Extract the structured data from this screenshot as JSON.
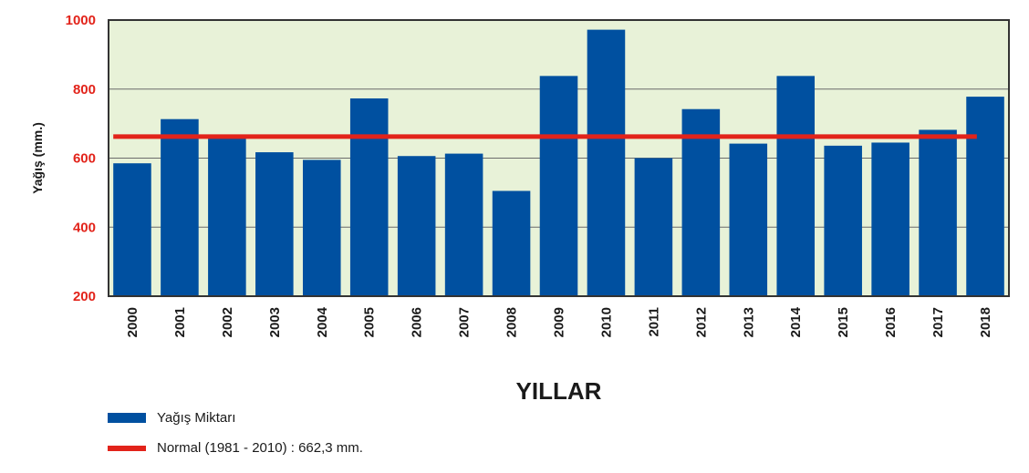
{
  "chart_data": {
    "type": "bar",
    "categories": [
      "2000",
      "2001",
      "2002",
      "2003",
      "2004",
      "2005",
      "2006",
      "2007",
      "2008",
      "2009",
      "2010",
      "2011",
      "2012",
      "2013",
      "2014",
      "2015",
      "2016",
      "2017",
      "2018"
    ],
    "series": [
      {
        "name": "Yağış Miktarı",
        "values": [
          585,
          713,
          662,
          617,
          595,
          773,
          606,
          613,
          505,
          838,
          972,
          600,
          742,
          642,
          838,
          636,
          645,
          682,
          778
        ]
      }
    ],
    "reference_line": {
      "name": "Normal (1981 - 2010) : 662,3 mm.",
      "value": 662.3
    },
    "ylim": [
      200,
      1000
    ],
    "yticks": [
      200,
      400,
      600,
      800,
      1000
    ],
    "xlabel": "YILLAR",
    "ylabel": "Yağış (mm.)",
    "grid": true,
    "legend_position": "bottom-left",
    "colors": {
      "bar": "#0050a0",
      "reference_line": "#e2231a",
      "plot_background": "#e8f2d8",
      "tick_y": "#e2231a"
    }
  },
  "legend": {
    "bar_label": "Yağış Miktarı",
    "line_label": "Normal (1981 - 2010) : 662,3 mm."
  }
}
